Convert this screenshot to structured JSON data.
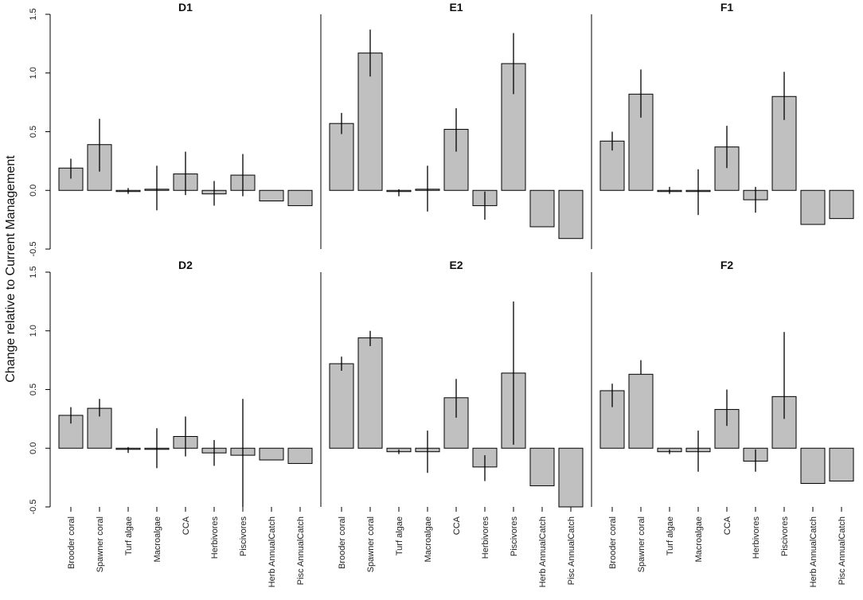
{
  "chart_data": {
    "type": "bar",
    "ylabel": "Change relative to Current Management",
    "categories": [
      "Brooder coral",
      "Spawner coral",
      "Turf algae",
      "Macroalgae",
      "CCA",
      "Herbivores",
      "Piscivores",
      "Herb AnnualCatch",
      "Pisc AnnualCatch"
    ],
    "colors": {
      "bar_fill": "#c0c0c0",
      "bar_stroke": "#000000"
    },
    "rows": [
      {
        "ylim": [
          -0.5,
          1.5
        ],
        "yticks": [
          -0.5,
          0.0,
          0.5,
          1.0,
          1.5
        ],
        "ytick_labels": [
          "-0.5",
          "0.0",
          "0.5",
          "1.0",
          "1.5"
        ],
        "panels": [
          {
            "title": "D1",
            "values": [
              0.19,
              0.39,
              -0.01,
              0.01,
              0.14,
              -0.03,
              0.13,
              -0.09,
              -0.13
            ],
            "err_lo": [
              0.1,
              0.16,
              -0.03,
              -0.17,
              -0.04,
              -0.13,
              -0.05,
              null,
              null
            ],
            "err_hi": [
              0.27,
              0.61,
              0.02,
              0.21,
              0.33,
              0.08,
              0.31,
              null,
              null
            ]
          },
          {
            "title": "E1",
            "values": [
              0.57,
              1.17,
              -0.01,
              0.01,
              0.52,
              -0.13,
              1.08,
              -0.31,
              -0.41
            ],
            "err_lo": [
              0.48,
              0.97,
              -0.05,
              -0.18,
              0.33,
              -0.25,
              0.82,
              null,
              null
            ],
            "err_hi": [
              0.66,
              1.37,
              0.01,
              0.21,
              0.7,
              -0.01,
              1.34,
              null,
              null
            ]
          },
          {
            "title": "F1",
            "values": [
              0.42,
              0.82,
              -0.01,
              -0.01,
              0.37,
              -0.08,
              0.8,
              -0.29,
              -0.24
            ],
            "err_lo": [
              0.34,
              0.62,
              -0.03,
              -0.21,
              0.19,
              -0.19,
              0.6,
              null,
              null
            ],
            "err_hi": [
              0.5,
              1.03,
              0.03,
              0.18,
              0.55,
              0.03,
              1.01,
              null,
              null
            ]
          }
        ]
      },
      {
        "ylim": [
          -0.5,
          1.5
        ],
        "yticks": [
          -0.5,
          0.0,
          0.5,
          1.0,
          1.5
        ],
        "ytick_labels": [
          "-0.5",
          "0.0",
          "0.5",
          "1.0",
          "1.5"
        ],
        "panels": [
          {
            "title": "D2",
            "values": [
              0.28,
              0.34,
              -0.01,
              -0.01,
              0.1,
              -0.04,
              -0.06,
              -0.1,
              -0.13
            ],
            "err_lo": [
              0.21,
              0.27,
              -0.04,
              -0.17,
              -0.07,
              -0.15,
              -0.5,
              null,
              null
            ],
            "err_hi": [
              0.35,
              0.42,
              0.01,
              0.17,
              0.27,
              0.07,
              0.42,
              null,
              null
            ]
          },
          {
            "title": "E2",
            "values": [
              0.72,
              0.94,
              -0.03,
              -0.03,
              0.43,
              -0.16,
              0.64,
              -0.32,
              -0.5
            ],
            "err_lo": [
              0.66,
              0.87,
              -0.05,
              -0.21,
              0.26,
              -0.28,
              0.03,
              null,
              null
            ],
            "err_hi": [
              0.78,
              1.0,
              -0.01,
              0.15,
              0.59,
              -0.06,
              1.25,
              null,
              null
            ]
          },
          {
            "title": "F2",
            "values": [
              0.49,
              0.63,
              -0.03,
              -0.03,
              0.33,
              -0.11,
              0.44,
              -0.3,
              -0.28
            ],
            "err_lo": [
              0.35,
              0.63,
              -0.05,
              -0.2,
              0.19,
              -0.2,
              0.25,
              null,
              null
            ],
            "err_hi": [
              0.55,
              0.75,
              -0.01,
              0.15,
              0.5,
              -0.01,
              0.99,
              null,
              null
            ]
          }
        ]
      }
    ]
  }
}
